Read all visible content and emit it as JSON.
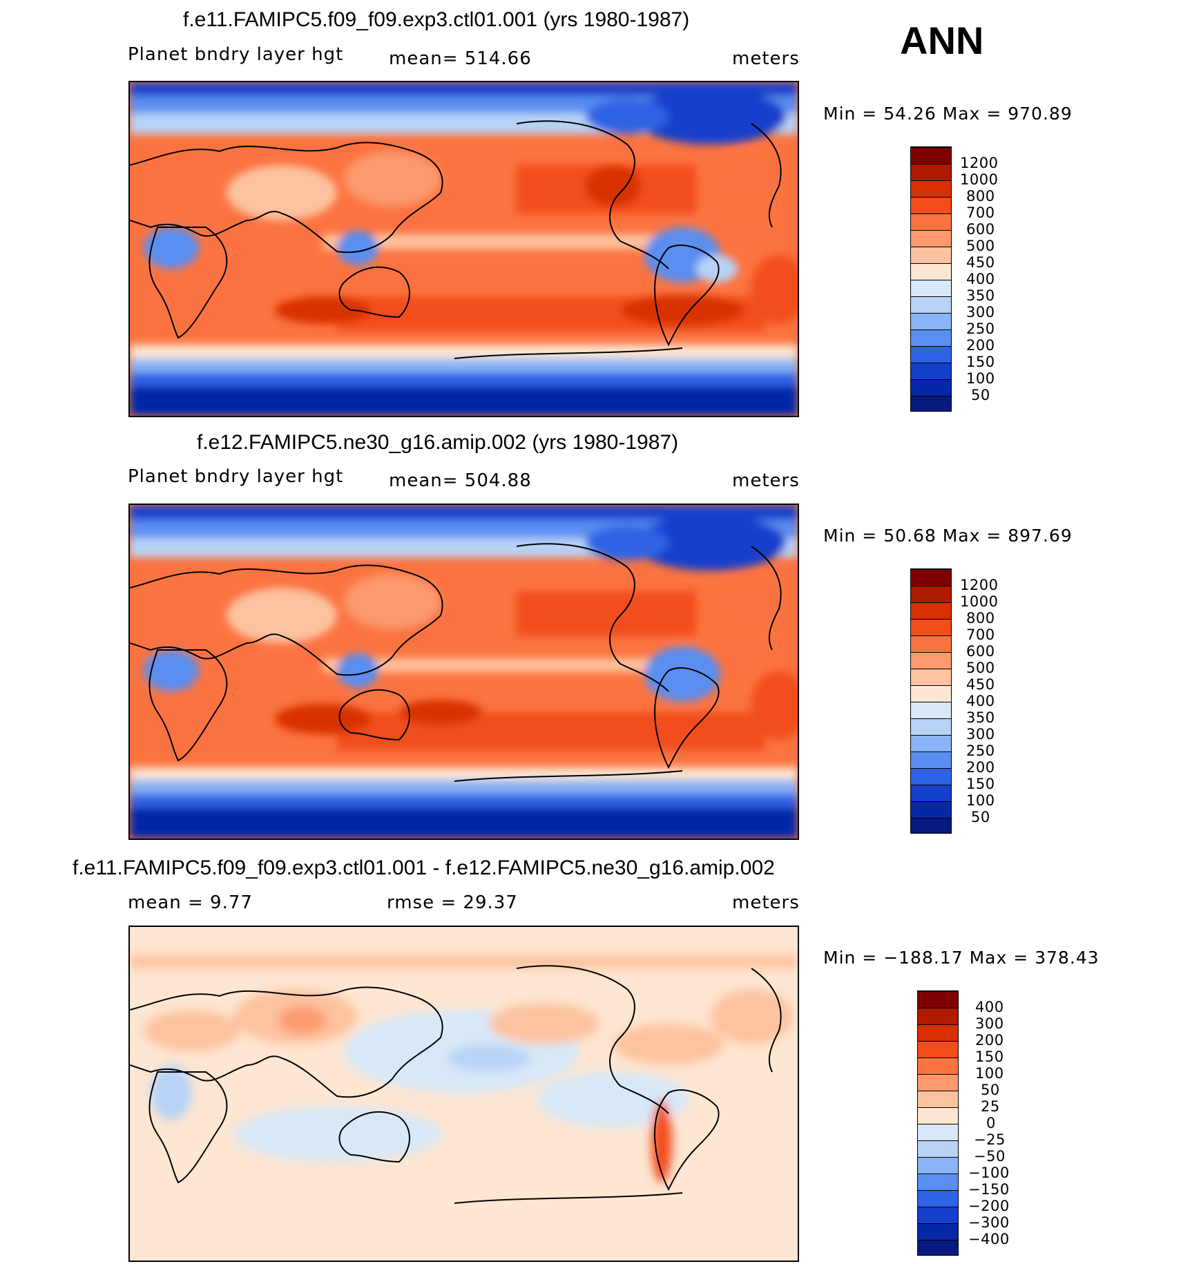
{
  "season": "ANN",
  "panels": [
    {
      "title": "f.e11.FAMIPC5.f09_f09.exp3.ctl01.001 (yrs 1980-1987)",
      "variable": "Planet bndry layer hgt",
      "stat": "mean=  514.66",
      "units": "meters",
      "minmax": "Min =    54.26  Max  =  970.89",
      "colorbar": {
        "labels": [
          "1200",
          "1000",
          "800",
          "700",
          "600",
          "500",
          "450",
          "400",
          "350",
          "300",
          "250",
          "200",
          "150",
          "100",
          "50"
        ],
        "colors": [
          "#7f0000",
          "#b01a00",
          "#d83000",
          "#f24d1a",
          "#fb7340",
          "#fc9a6e",
          "#fdc3a0",
          "#fde6d2",
          "#d8e8f8",
          "#b8d3f6",
          "#8ab4f5",
          "#5a8ef0",
          "#2f63e6",
          "#1540cc",
          "#0628a8",
          "#061a80"
        ]
      }
    },
    {
      "title": "f.e12.FAMIPC5.ne30_g16.amip.002 (yrs 1980-1987)",
      "variable": "Planet bndry layer hgt",
      "stat": "mean=  504.88",
      "units": "meters",
      "minmax": "Min =    50.68  Max  =  897.69",
      "colorbar": {
        "labels": [
          "1200",
          "1000",
          "800",
          "700",
          "600",
          "500",
          "450",
          "400",
          "350",
          "300",
          "250",
          "200",
          "150",
          "100",
          "50"
        ],
        "colors": [
          "#7f0000",
          "#b01a00",
          "#d83000",
          "#f24d1a",
          "#fb7340",
          "#fc9a6e",
          "#fdc3a0",
          "#fde6d2",
          "#d8e8f8",
          "#b8d3f6",
          "#8ab4f5",
          "#5a8ef0",
          "#2f63e6",
          "#1540cc",
          "#0628a8",
          "#061a80"
        ]
      }
    },
    {
      "title": "f.e11.FAMIPC5.f09_f09.exp3.ctl01.001 - f.e12.FAMIPC5.ne30_g16.amip.002",
      "stat_mean": "mean =     9.77",
      "stat_rmse": "rmse =    29.37",
      "units": "meters",
      "minmax": "Min  =  −188.17  Max  =  378.43",
      "colorbar": {
        "labels": [
          "400",
          "300",
          "200",
          "150",
          "100",
          "50",
          "25",
          "0",
          "−25",
          "−50",
          "−100",
          "−150",
          "−200",
          "−300",
          "−400"
        ],
        "colors": [
          "#7f0000",
          "#b01a00",
          "#d83000",
          "#f24d1a",
          "#fb7340",
          "#fc9a6e",
          "#fdc3a0",
          "#fde6d2",
          "#d8e8f8",
          "#b8d3f6",
          "#8ab4f5",
          "#5a8ef0",
          "#2f63e6",
          "#1540cc",
          "#0628a8",
          "#061a80"
        ]
      }
    }
  ],
  "chart_data": [
    {
      "type": "heatmap",
      "title": "f.e11.FAMIPC5.f09_f09.exp3.ctl01.001 (yrs 1980-1987)",
      "variable": "Planet bndry layer hgt",
      "units": "meters",
      "mean": 514.66,
      "min": 54.26,
      "max": 970.89,
      "contour_levels": [
        50,
        100,
        150,
        200,
        250,
        300,
        350,
        400,
        450,
        500,
        600,
        700,
        800,
        1000,
        1200
      ]
    },
    {
      "type": "heatmap",
      "title": "f.e12.FAMIPC5.ne30_g16.amip.002 (yrs 1980-1987)",
      "variable": "Planet bndry layer hgt",
      "units": "meters",
      "mean": 504.88,
      "min": 50.68,
      "max": 897.69,
      "contour_levels": [
        50,
        100,
        150,
        200,
        250,
        300,
        350,
        400,
        450,
        500,
        600,
        700,
        800,
        1000,
        1200
      ]
    },
    {
      "type": "heatmap",
      "title": "f.e11.FAMIPC5.f09_f09.exp3.ctl01.001 - f.e12.FAMIPC5.ne30_g16.amip.002",
      "units": "meters",
      "mean": 9.77,
      "rmse": 29.37,
      "min": -188.17,
      "max": 378.43,
      "contour_levels": [
        -400,
        -300,
        -200,
        -150,
        -100,
        -50,
        -25,
        0,
        25,
        50,
        100,
        150,
        200,
        300,
        400
      ]
    }
  ]
}
